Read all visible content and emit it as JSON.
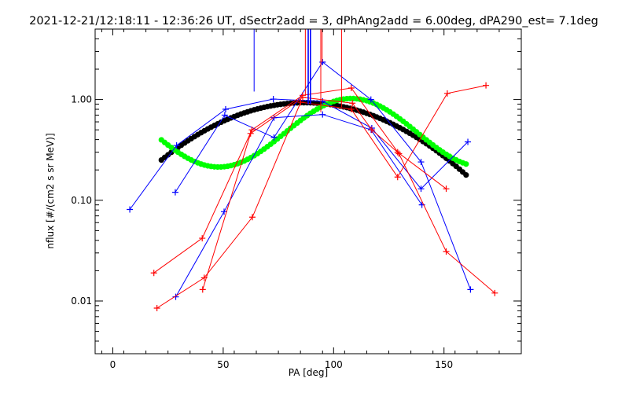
{
  "title": "2021-12-21/12:18:11 - 12:36:26 UT, dSectr2add = 3, dPhAng2add = 6.00deg, dPA290_est=   7.1deg",
  "chart_data": {
    "type": "line",
    "xlabel": "PA [deg]",
    "ylabel": "nflux [#/(cm2 s sr MeV)]",
    "xlim": [
      -8,
      185
    ],
    "ylim": [
      0.003,
      5.0
    ],
    "yscale": "log",
    "xticks": [
      0,
      50,
      100,
      150
    ],
    "xtick_labels": [
      "0",
      "50",
      "100",
      "150"
    ],
    "yticks": [
      0.01,
      0.1,
      1.0
    ],
    "ytick_labels": [
      "0.01",
      "0.10",
      "1.00"
    ],
    "grid": false,
    "colors": {
      "blue": "#0000ff",
      "red": "#ff0000",
      "black": "#000000",
      "green": "#00ff00"
    },
    "series": [
      {
        "color": "blue",
        "marker": "+",
        "values": [
          [
            7.7,
            0.081
          ],
          [
            28.9,
            0.35
          ],
          [
            51.1,
            0.8
          ],
          [
            72.7,
            1.01
          ],
          [
            95.0,
            0.96
          ],
          [
            117.3,
            0.52
          ],
          [
            139.6,
            0.13
          ],
          [
            160.8,
            0.38
          ]
        ]
      },
      {
        "color": "blue",
        "marker": "+",
        "values": [
          [
            28.3,
            0.12
          ],
          [
            50.7,
            0.7
          ],
          [
            73.0,
            0.42
          ],
          [
            95.0,
            2.35
          ],
          [
            116.9,
            1.0
          ],
          [
            139.6,
            0.24
          ],
          [
            162.0,
            0.013
          ]
        ]
      },
      {
        "color": "blue",
        "marker": "+",
        "values": [
          [
            28.5,
            0.011
          ],
          [
            50.4,
            0.077
          ],
          [
            73.0,
            0.66
          ],
          [
            95.0,
            0.71
          ],
          [
            117.0,
            0.5
          ],
          [
            140.0,
            0.09
          ]
        ]
      },
      {
        "color": "red",
        "marker": "+",
        "values": [
          [
            18.6,
            0.019
          ],
          [
            40.5,
            0.042
          ],
          [
            63.0,
            0.5
          ],
          [
            86.0,
            1.1
          ],
          [
            108.0,
            1.3
          ],
          [
            129.6,
            0.29
          ],
          [
            151.0,
            0.031
          ],
          [
            173.0,
            0.012
          ]
        ]
      },
      {
        "color": "red",
        "marker": "+",
        "values": [
          [
            20.0,
            0.0085
          ],
          [
            41.4,
            0.017
          ],
          [
            63.2,
            0.068
          ],
          [
            85.1,
            0.94
          ],
          [
            108.0,
            0.8
          ],
          [
            129.0,
            0.17
          ],
          [
            151.5,
            1.15
          ],
          [
            169.0,
            1.38
          ]
        ]
      },
      {
        "color": "red",
        "marker": "+",
        "values": [
          [
            40.7,
            0.013
          ],
          [
            62.4,
            0.46
          ],
          [
            86.0,
            1.05
          ],
          [
            108.5,
            0.92
          ],
          [
            117.3,
            0.5
          ],
          [
            129.0,
            0.3
          ],
          [
            151.0,
            0.13
          ]
        ]
      },
      {
        "color": "black",
        "marker": "dot",
        "fit": {
          "type": "gaussian-log",
          "peak_x": 87,
          "peak_y": 0.93,
          "log10_sigma_deg": 109
        },
        "x_range": [
          22,
          161
        ],
        "step": 1.5
      },
      {
        "color": "green",
        "marker": "dot",
        "fit": {
          "type": "cosine-log",
          "mean_log10": -0.33,
          "amplitude_log10": 0.34,
          "peak_x": 108,
          "period_deg": 120
        },
        "x_range": [
          22,
          161
        ],
        "step": 1.5
      }
    ],
    "vertical_lines": [
      {
        "color": "blue",
        "x": 64.0,
        "y_from": 1.2
      },
      {
        "color": "blue",
        "x": 88.5,
        "y_from": 0.9
      },
      {
        "color": "blue",
        "x": 89.5,
        "y_from": 0.9
      },
      {
        "color": "red",
        "x": 87.2,
        "y_from": 1.1
      },
      {
        "color": "red",
        "x": 94.2,
        "y_from": 0.75
      },
      {
        "color": "red",
        "x": 103.6,
        "y_from": 0.84
      },
      {
        "color": "red",
        "x": 94.8,
        "y_from": 2.35
      }
    ]
  }
}
